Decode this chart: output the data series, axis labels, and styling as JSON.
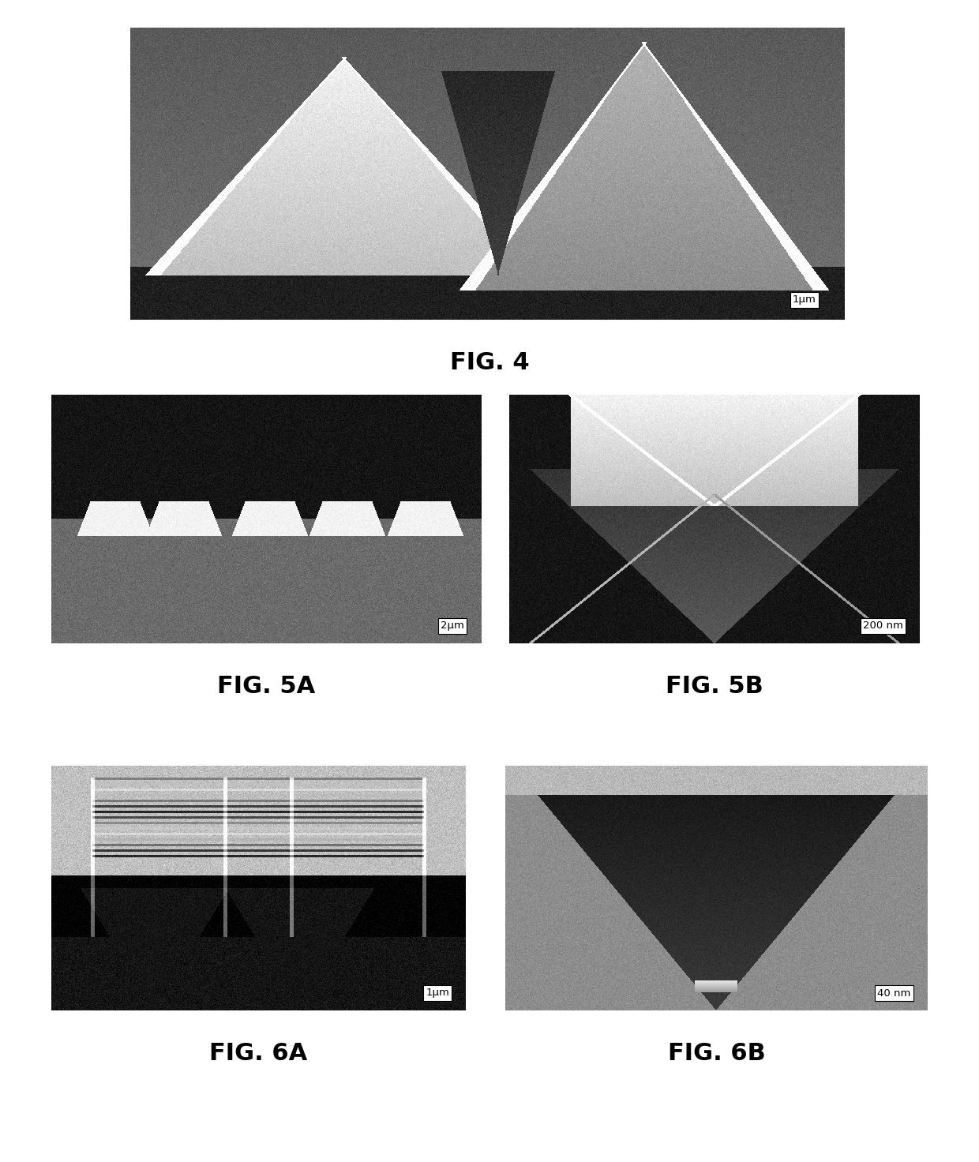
{
  "background_color": "#ffffff",
  "fig_width": 12.4,
  "fig_height": 14.72,
  "labels": {
    "fig4": "FIG. 4",
    "fig5a": "FIG. 5A",
    "fig5b": "FIG. 5B",
    "fig6a": "FIG. 6A",
    "fig6b": "FIG. 6B"
  },
  "scale_bars": {
    "fig4": "1μm",
    "fig5a": "2μm",
    "fig5b": "200 nm",
    "fig6a": "1μm",
    "fig6b": "40 nm"
  },
  "label_fontsize": 22,
  "label_fontweight": "bold",
  "scalebar_fontsize": 11,
  "scalebar_bg": "#ffffff",
  "scalebar_text_color": "#000000"
}
